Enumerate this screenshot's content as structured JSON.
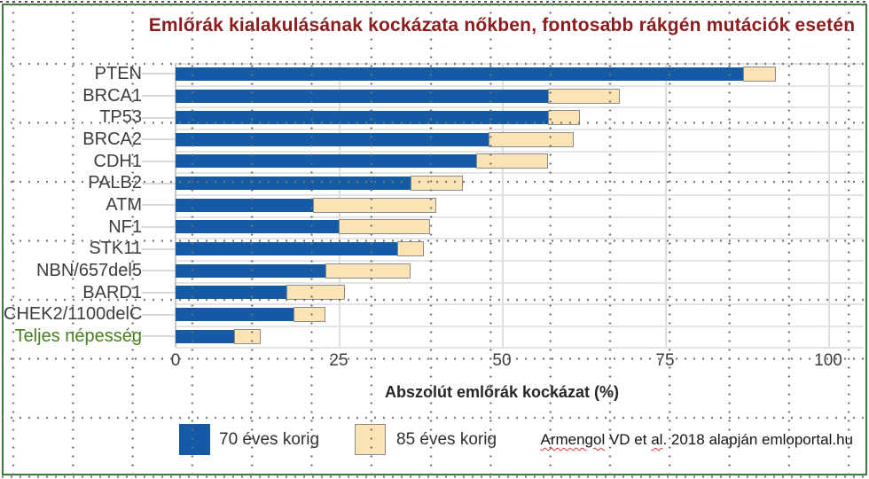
{
  "title": "Emlőrák kialakulásának kockázata nőkben, fontosabb rákgén mutációk esetén",
  "chart_data": {
    "type": "bar",
    "orientation": "horizontal",
    "title": "Emlőrák kialakulásának kockázata nőkben, fontosabb rákgén mutációk esetén",
    "categories": [
      "PTEN",
      "BRCA1",
      "TP53",
      "BRCA2",
      "CDH1",
      "PALB2",
      "ATM",
      "NF1",
      "STK11",
      "NBN/657del5",
      "BARD1",
      "CHEK2/1100delC",
      "Teljes népesség"
    ],
    "series": [
      {
        "name": "70 éves korig",
        "values": [
          87,
          57,
          57,
          48,
          46,
          36,
          21,
          25,
          34,
          23,
          17,
          18,
          9
        ]
      },
      {
        "name": "85 éves korig",
        "values": [
          92,
          68,
          62,
          61,
          57,
          44,
          40,
          39,
          38,
          36,
          26,
          23,
          13
        ]
      }
    ],
    "xlabel": "Abszolút emlőrák kockázat (%)",
    "xticks": [
      "0",
      "25",
      "50",
      "75",
      "100"
    ],
    "xlim": [
      0,
      100
    ],
    "grid": true,
    "legend_position": "bottom",
    "highlight_category": "Teljes népesség",
    "colors": {
      "bar_70": "#155aa5",
      "bar_85": "#fae3b5",
      "bar_85_border": "#8c8c8c",
      "highlight_label": "#477d1f",
      "title": "#8e1b1b",
      "frame": "#3c7a3c"
    }
  },
  "legend": {
    "items": [
      {
        "label": "70 éves korig"
      },
      {
        "label": "85 éves korig"
      }
    ]
  },
  "attribution": {
    "part1": "Armengol",
    "part2": " VD et ",
    "part3": "al",
    "part4": ". 2018 alapján emloportal.hu"
  }
}
